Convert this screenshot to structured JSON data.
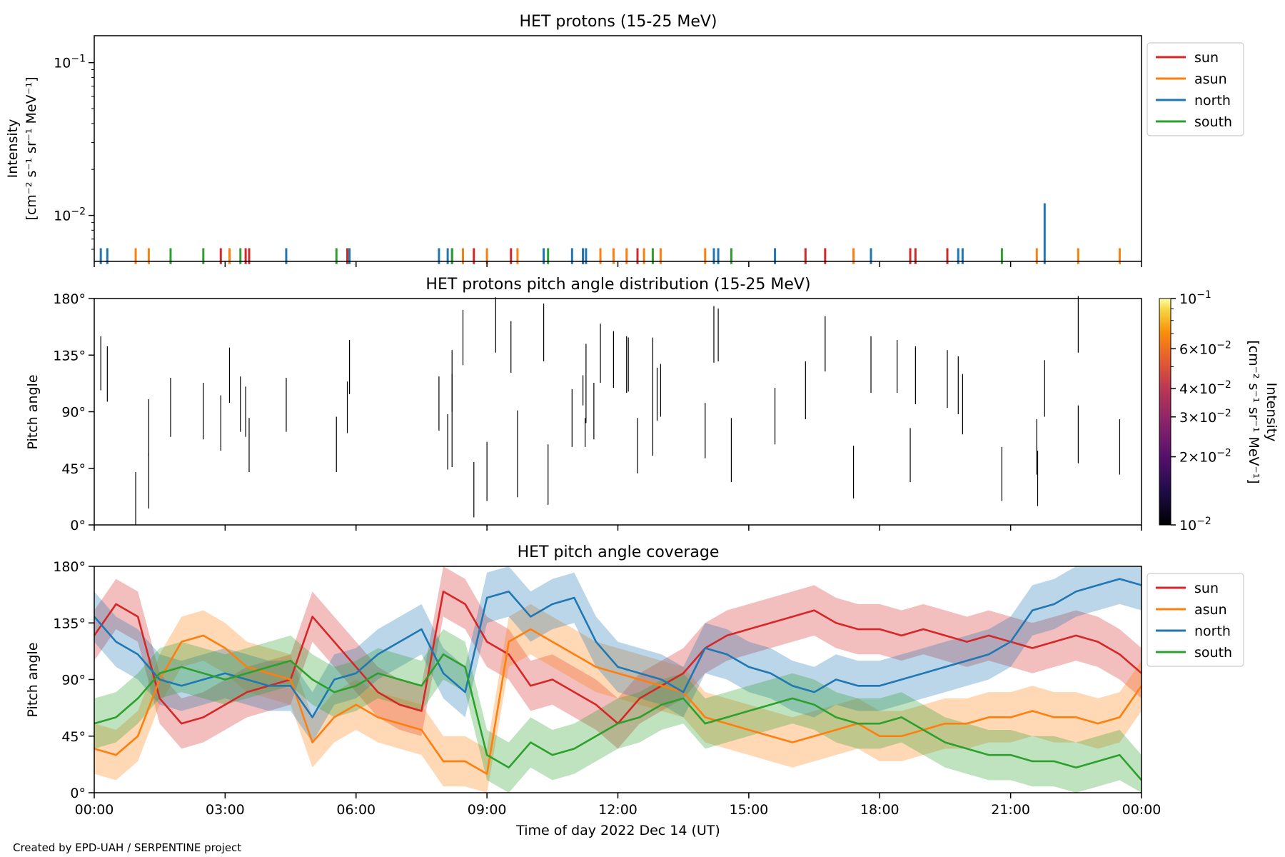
{
  "figure": {
    "footer": "Created by EPD-UAH / SERPENTINE project",
    "xlabel": "Time of day 2022 Dec 14 (UT)",
    "xticks": [
      "00:00",
      "03:00",
      "06:00",
      "09:00",
      "12:00",
      "15:00",
      "18:00",
      "21:00",
      "00:00"
    ],
    "xrange_hours": [
      0,
      24
    ]
  },
  "colors": {
    "sun": "#d62728",
    "asun": "#ff7f0e",
    "north": "#1f77b4",
    "south": "#2ca02c"
  },
  "chart_data": [
    {
      "type": "bar",
      "title": "HET protons (15-25 MeV)",
      "ylabel_line1": "Intensity",
      "ylabel_line2": "[cm⁻² s⁻¹ sr⁻¹ MeV⁻¹]",
      "yscale": "log",
      "ylim": [
        0.005,
        0.15
      ],
      "ytick_labels": [
        {
          "base": "10",
          "exp": "−1",
          "value": 0.1
        },
        {
          "base": "10",
          "exp": "−2",
          "value": 0.01
        }
      ],
      "legend": [
        "sun",
        "asun",
        "north",
        "south"
      ],
      "legend_position": "outside-right-top",
      "baseline": 0.0048,
      "series": [
        {
          "name": "sun",
          "hours": [
            2.9,
            3.47,
            3.55,
            5.8,
            8.7,
            9.55,
            11.2,
            12.45,
            16.3,
            16.75,
            18.7,
            18.82,
            19.55
          ]
        },
        {
          "name": "asun",
          "hours": [
            0.95,
            1.25,
            3.1,
            8.45,
            9.0,
            9.7,
            11.6,
            11.9,
            12.2,
            12.6,
            12.98,
            14.0,
            17.4,
            21.6,
            22.55,
            23.5
          ]
        },
        {
          "name": "north",
          "hours": [
            0.15,
            0.3,
            4.4,
            5.85,
            7.9,
            8.1,
            8.2,
            10.3,
            10.95,
            11.2,
            11.27,
            14.2,
            14.3,
            15.6,
            17.8,
            19.8,
            19.9
          ]
        },
        {
          "name": "south",
          "hours": [
            1.75,
            2.5,
            3.35,
            5.55,
            8.2,
            10.4,
            12.8,
            14.6,
            20.8
          ]
        },
        {
          "name": "north",
          "hours": [
            21.78
          ],
          "value": 0.012
        }
      ]
    },
    {
      "type": "heatmap",
      "title": "HET protons pitch angle distribution (15-25 MeV)",
      "ylabel": "Pitch angle",
      "ylim": [
        0,
        180
      ],
      "yticks": [
        "0°",
        "45°",
        "90°",
        "135°",
        "180°"
      ],
      "colorbar_label_line1": "Intensity",
      "colorbar_label_line2": "[cm⁻² s⁻¹ sr⁻¹ MeV⁻¹]",
      "colorbar_scale": "log",
      "colorbar_range": [
        0.01,
        0.1
      ],
      "colorbar_ticks": [
        {
          "mant": "10",
          "exp": "−1",
          "value": 0.1
        },
        {
          "mant": "6×10",
          "exp": "−2",
          "value": 0.06
        },
        {
          "mant": "4×10",
          "exp": "−2",
          "value": 0.04
        },
        {
          "mant": "3×10",
          "exp": "−2",
          "value": 0.03
        },
        {
          "mant": "2×10",
          "exp": "−2",
          "value": 0.02
        },
        {
          "mant": "10",
          "exp": "−2",
          "value": 0.01
        }
      ],
      "colormap": "inferno",
      "segments": [
        [
          0.15,
          150,
          107
        ],
        [
          0.3,
          142,
          98
        ],
        [
          0.95,
          42,
          0
        ],
        [
          1.25,
          100,
          55
        ],
        [
          1.25,
          57,
          13
        ],
        [
          1.75,
          117,
          70
        ],
        [
          2.5,
          113,
          68
        ],
        [
          2.9,
          103,
          59
        ],
        [
          3.1,
          141,
          97
        ],
        [
          3.35,
          118,
          74
        ],
        [
          3.47,
          110,
          70
        ],
        [
          3.55,
          85,
          42
        ],
        [
          4.4,
          117,
          74
        ],
        [
          5.55,
          86,
          42
        ],
        [
          5.8,
          114,
          73
        ],
        [
          5.85,
          147,
          104
        ],
        [
          7.9,
          118,
          75
        ],
        [
          8.1,
          88,
          44
        ],
        [
          8.2,
          120,
          46
        ],
        [
          8.2,
          139,
          90
        ],
        [
          8.45,
          171,
          127
        ],
        [
          8.7,
          50,
          6
        ],
        [
          9.0,
          66,
          19
        ],
        [
          9.2,
          181,
          137
        ],
        [
          9.55,
          162,
          121
        ],
        [
          9.7,
          91,
          22
        ],
        [
          10.3,
          176,
          130
        ],
        [
          10.4,
          64,
          16
        ],
        [
          10.95,
          108,
          62
        ],
        [
          11.2,
          119,
          95
        ],
        [
          11.25,
          85,
          62
        ],
        [
          11.27,
          144,
          81
        ],
        [
          11.45,
          113,
          68
        ],
        [
          11.6,
          160,
          113
        ],
        [
          11.9,
          154,
          109
        ],
        [
          12.2,
          150,
          105
        ],
        [
          12.24,
          149,
          106
        ],
        [
          12.45,
          85,
          41
        ],
        [
          12.8,
          149,
          55
        ],
        [
          12.9,
          125,
          83
        ],
        [
          12.98,
          128,
          86
        ],
        [
          14.0,
          97,
          53
        ],
        [
          14.2,
          174,
          129
        ],
        [
          14.3,
          172,
          130
        ],
        [
          14.6,
          85,
          34
        ],
        [
          15.6,
          109,
          64
        ],
        [
          16.3,
          130,
          84
        ],
        [
          16.75,
          166,
          122
        ],
        [
          17.4,
          63,
          21
        ],
        [
          17.8,
          150,
          105
        ],
        [
          18.4,
          147,
          105
        ],
        [
          18.7,
          77,
          34
        ],
        [
          18.82,
          142,
          96
        ],
        [
          19.55,
          139,
          93
        ],
        [
          19.8,
          134,
          88
        ],
        [
          19.9,
          120,
          72
        ],
        [
          20.8,
          62,
          19
        ],
        [
          21.6,
          84,
          40
        ],
        [
          21.62,
          59,
          15
        ],
        [
          21.78,
          131,
          86
        ],
        [
          22.55,
          182,
          137
        ],
        [
          22.55,
          95,
          49
        ],
        [
          23.5,
          84,
          40
        ]
      ]
    },
    {
      "type": "area",
      "title": "HET pitch angle coverage",
      "ylabel": "Pitch angle",
      "ylim": [
        0,
        180
      ],
      "yticks": [
        "0°",
        "45°",
        "90°",
        "135°",
        "180°"
      ],
      "xlabel": "Time of day 2022 Dec 14 (UT)",
      "legend": [
        "sun",
        "asun",
        "north",
        "south"
      ],
      "legend_position": "outside-right-top",
      "band_halfwidth_deg": 20,
      "series": [
        {
          "name": "sun",
          "hours": [
            0,
            0.5,
            1,
            1.5,
            2,
            2.5,
            3,
            3.5,
            4,
            4.5,
            5,
            5.5,
            6,
            6.5,
            7,
            7.5,
            8,
            8.5,
            9,
            9.5,
            10,
            10.5,
            11,
            11.5,
            12,
            12.5,
            13,
            13.5,
            14,
            14.5,
            15,
            15.5,
            16,
            16.5,
            17,
            17.5,
            18,
            18.5,
            19,
            19.5,
            20,
            20.5,
            21,
            21.5,
            22,
            22.5,
            23,
            23.5,
            24
          ],
          "values": [
            125,
            150,
            140,
            75,
            55,
            60,
            70,
            80,
            85,
            90,
            140,
            120,
            100,
            80,
            70,
            65,
            160,
            150,
            120,
            110,
            85,
            90,
            80,
            70,
            55,
            75,
            85,
            95,
            115,
            125,
            130,
            135,
            140,
            145,
            135,
            130,
            130,
            125,
            130,
            125,
            120,
            125,
            120,
            115,
            120,
            125,
            120,
            110,
            95
          ]
        },
        {
          "name": "asun",
          "hours": [
            0,
            0.5,
            1,
            1.5,
            2,
            2.5,
            3,
            3.5,
            4,
            4.5,
            5,
            5.5,
            6,
            6.5,
            7,
            7.5,
            8,
            8.5,
            9,
            9.5,
            10,
            10.5,
            11,
            11.5,
            12,
            12.5,
            13,
            13.5,
            14,
            14.5,
            15,
            15.5,
            16,
            16.5,
            17,
            17.5,
            18,
            18.5,
            19,
            19.5,
            20,
            20.5,
            21,
            21.5,
            22,
            22.5,
            23,
            23.5,
            24
          ],
          "values": [
            35,
            30,
            45,
            90,
            120,
            125,
            115,
            100,
            95,
            90,
            40,
            60,
            70,
            60,
            55,
            50,
            25,
            25,
            15,
            120,
            130,
            120,
            110,
            100,
            95,
            90,
            85,
            80,
            60,
            55,
            50,
            45,
            40,
            45,
            50,
            55,
            45,
            45,
            50,
            55,
            55,
            60,
            60,
            65,
            60,
            60,
            55,
            60,
            85
          ]
        },
        {
          "name": "north",
          "hours": [
            0,
            0.5,
            1,
            1.5,
            2,
            2.5,
            3,
            3.5,
            4,
            4.5,
            5,
            5.5,
            6,
            6.5,
            7,
            7.5,
            8,
            8.5,
            9,
            9.5,
            10,
            10.5,
            11,
            11.5,
            12,
            12.5,
            13,
            13.5,
            14,
            14.5,
            15,
            15.5,
            16,
            16.5,
            17,
            17.5,
            18,
            18.5,
            19,
            19.5,
            20,
            20.5,
            21,
            21.5,
            22,
            22.5,
            23,
            23.5,
            24
          ],
          "values": [
            140,
            120,
            110,
            90,
            85,
            90,
            95,
            90,
            85,
            85,
            60,
            90,
            95,
            110,
            120,
            130,
            95,
            80,
            155,
            160,
            140,
            150,
            155,
            120,
            100,
            95,
            90,
            80,
            115,
            110,
            100,
            95,
            85,
            80,
            90,
            85,
            85,
            90,
            95,
            100,
            105,
            110,
            120,
            145,
            150,
            160,
            165,
            170,
            165
          ]
        },
        {
          "name": "south",
          "hours": [
            0,
            0.5,
            1,
            1.5,
            2,
            2.5,
            3,
            3.5,
            4,
            4.5,
            5,
            5.5,
            6,
            6.5,
            7,
            7.5,
            8,
            8.5,
            9,
            9.5,
            10,
            10.5,
            11,
            11.5,
            12,
            12.5,
            13,
            13.5,
            14,
            14.5,
            15,
            15.5,
            16,
            16.5,
            17,
            17.5,
            18,
            18.5,
            19,
            19.5,
            20,
            20.5,
            21,
            21.5,
            22,
            22.5,
            23,
            23.5,
            24
          ],
          "values": [
            55,
            60,
            75,
            95,
            100,
            95,
            90,
            95,
            100,
            105,
            90,
            80,
            85,
            95,
            90,
            85,
            110,
            100,
            30,
            20,
            40,
            30,
            35,
            45,
            55,
            60,
            70,
            75,
            55,
            60,
            65,
            70,
            75,
            70,
            60,
            55,
            55,
            60,
            50,
            40,
            35,
            30,
            30,
            25,
            25,
            20,
            25,
            30,
            10
          ]
        }
      ]
    }
  ]
}
